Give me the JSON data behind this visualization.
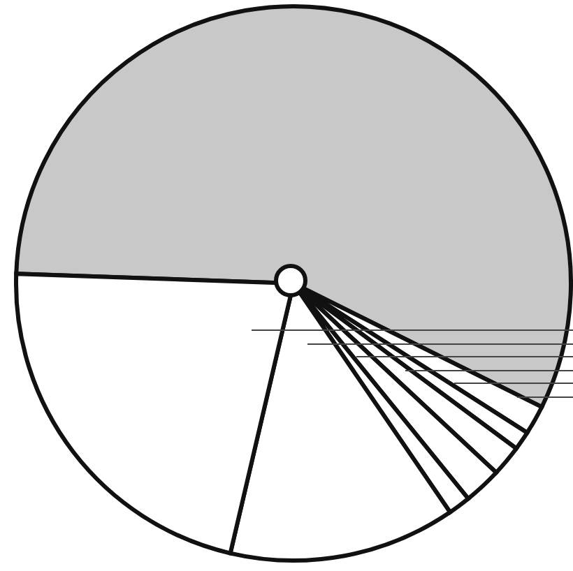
{
  "chart_data": {
    "type": "pie",
    "categories": [
      null,
      null,
      null,
      null,
      null,
      null,
      null,
      null
    ],
    "values": [
      56.8,
      1.7,
      1.1,
      1.8,
      2.2,
      1.3,
      13.2,
      21.9
    ],
    "colors": [
      "#c8c8c8",
      "#ffffff",
      "#ffffff",
      "#ffffff",
      "#ffffff",
      "#ffffff",
      "#ffffff",
      "#ffffff"
    ],
    "legend": false
  }
}
